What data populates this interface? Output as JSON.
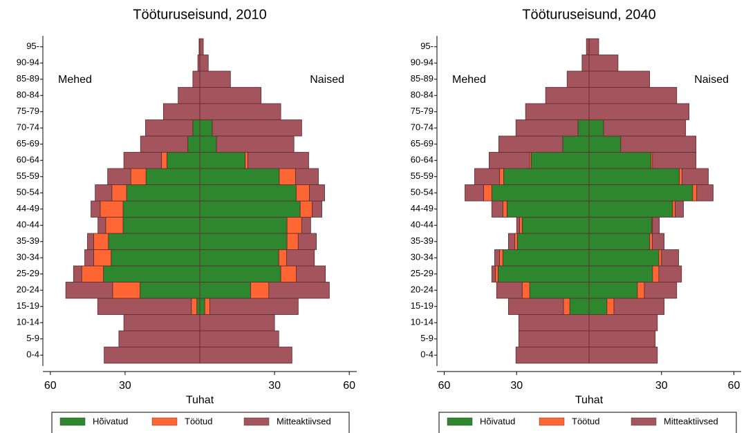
{
  "chart_data": [
    {
      "type": "pyramid",
      "title": "Tööturuseisund, 2010",
      "x_label": "Tuhat",
      "side_labels": [
        "Mehed",
        "Naised"
      ],
      "categories": [
        "0-4",
        "5-9",
        "10-14",
        "15-19",
        "20-24",
        "25-29",
        "30-34",
        "35-39",
        "40-44",
        "44-49",
        "50-54",
        "55-59",
        "60-64",
        "65-69",
        "70-74",
        "75-79",
        "80-84",
        "85-89",
        "90-94",
        "95-"
      ],
      "xlim": [
        -63,
        63
      ],
      "xticks": [
        {
          "value": -60,
          "label": "60"
        },
        {
          "value": -30,
          "label": "30"
        },
        30,
        60
      ],
      "series": [
        {
          "name": "Hõivatud",
          "color": "#2e862e",
          "values": [
            [
              0,
              0,
              0,
              1.2,
              24,
              38.7,
              35.6,
              36.7,
              30.8,
              30.8,
              29.4,
              21.6,
              13.2,
              4.8,
              2.8,
              0,
              0,
              0,
              0,
              0
            ],
            [
              0,
              0,
              0,
              2,
              20.4,
              32.5,
              31.7,
              35,
              35,
              40.3,
              38.7,
              31.9,
              18.2,
              6.7,
              5,
              0,
              0,
              0,
              0,
              0
            ]
          ]
        },
        {
          "name": "Töötud",
          "color": "#ff6633",
          "values": [
            [
              0,
              0,
              0,
              2.2,
              11,
              8.7,
              7,
              5.9,
              7,
              9.2,
              5.9,
              6.1,
              2.2,
              0,
              0,
              0,
              0,
              0,
              0,
              0
            ],
            [
              0,
              0,
              0,
              2,
              7.3,
              6.2,
              3.1,
              4.5,
              5.9,
              4.8,
              5.3,
              6.5,
              1.1,
              0,
              0,
              0,
              0,
              0,
              0,
              0
            ]
          ]
        },
        {
          "name": "Mitteaktiivsed",
          "color": "#a3545c",
          "values": [
            [
              38.4,
              32.5,
              30.5,
              37.6,
              18.8,
              3.3,
              3.6,
              2.5,
              3.1,
              3.7,
              6.7,
              9.3,
              15.1,
              19,
              19,
              14.6,
              8.7,
              2.8,
              0.8,
              0.3
            ],
            [
              37,
              31.7,
              30,
              35.5,
              24.3,
              11.7,
              11.2,
              7.3,
              3.6,
              3.9,
              6.1,
              9.2,
              24.4,
              31.1,
              35.9,
              32.5,
              24.6,
              12.3,
              3.4,
              1.4
            ]
          ]
        }
      ]
    },
    {
      "type": "pyramid",
      "title": "Tööturuseisund, 2040",
      "x_label": "Tuhat",
      "side_labels": [
        "Mehed",
        "Naised"
      ],
      "categories": [
        "0-4",
        "5-9",
        "10-14",
        "15-19",
        "20-24",
        "25-29",
        "30-34",
        "35-39",
        "40-44",
        "44-49",
        "50-54",
        "55-59",
        "60-64",
        "65-69",
        "70-74",
        "75-79",
        "80-84",
        "85-89",
        "90-94",
        "95-"
      ],
      "xlim": [
        -63,
        63
      ],
      "xticks": [
        {
          "value": -60,
          "label": "60"
        },
        {
          "value": -30,
          "label": "30"
        },
        30,
        60
      ],
      "series": [
        {
          "name": "Hõivatud",
          "color": "#2e862e",
          "values": [
            [
              0,
              0,
              0,
              8,
              24.6,
              37.7,
              35.7,
              29.7,
              27.7,
              34,
              40.3,
              35.4,
              24,
              10.9,
              4.6,
              0,
              0,
              0,
              0,
              0
            ],
            [
              0,
              0,
              0,
              7.4,
              20,
              26.3,
              28.9,
              25.1,
              26,
              34.6,
              42.9,
              37.4,
              25.7,
              13.1,
              6,
              0,
              0,
              0,
              0,
              0
            ]
          ]
        },
        {
          "name": "Töötud",
          "color": "#ff6633",
          "values": [
            [
              0,
              0,
              0,
              2.6,
              3.1,
              1.1,
              1.4,
              1.1,
              1.1,
              1.7,
              3.4,
              1.7,
              0.6,
              0,
              0,
              0,
              0,
              0,
              0,
              0
            ],
            [
              0,
              0,
              0,
              2.9,
              2.9,
              2.6,
              1.1,
              1.1,
              0.3,
              1.1,
              1.7,
              1.1,
              0.6,
              0,
              0,
              0,
              0,
              0,
              0,
              0
            ]
          ]
        },
        {
          "name": "Mitteaktiivsed",
          "color": "#a3545c",
          "values": [
            [
              30.3,
              29.1,
              29.1,
              22.8,
              10.6,
              1.5,
              2,
              2.6,
              1.2,
              4.6,
              7.7,
              10.3,
              16.8,
              26.5,
              25.7,
              26.3,
              18,
              9.1,
              2.9,
              1.1
            ],
            [
              28.3,
              27.4,
              28.3,
              20.8,
              13.4,
              9.4,
              7.1,
              4.9,
              2.8,
              3.4,
              6.8,
              10.9,
              18,
              31.2,
              34,
              41.4,
              36.3,
              25.1,
              12,
              4
            ]
          ]
        }
      ]
    }
  ]
}
